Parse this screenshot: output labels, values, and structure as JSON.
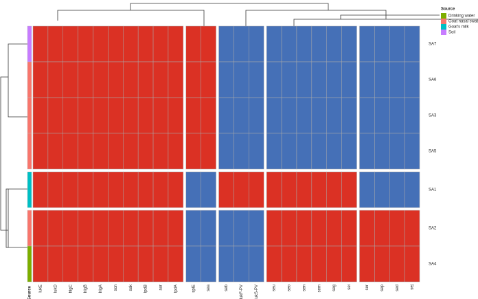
{
  "chart_data": {
    "type": "heatmap",
    "columns": [
      "lukE",
      "lukD",
      "hlgC",
      "hlgB",
      "hlgA",
      "scn",
      "sak",
      "lpdB",
      "aur",
      "lpdA",
      "splE",
      "sea",
      "seb",
      "lukF-PV",
      "lukS-PV",
      "seu",
      "seo",
      "sen",
      "sem",
      "seg",
      "sei",
      "ser",
      "sep",
      "sed",
      "sej"
    ],
    "rows": [
      "SA7",
      "SA6",
      "SA3",
      "SA5",
      "SA1",
      "SA2",
      "SA4"
    ],
    "values": [
      [
        1,
        1,
        1,
        1,
        1,
        1,
        1,
        1,
        1,
        1,
        1,
        1,
        0,
        0,
        0,
        0,
        0,
        0,
        0,
        0,
        0,
        0,
        0,
        0,
        0
      ],
      [
        1,
        1,
        1,
        1,
        1,
        1,
        1,
        1,
        1,
        1,
        1,
        1,
        0,
        0,
        0,
        0,
        0,
        0,
        0,
        0,
        0,
        0,
        0,
        0,
        0
      ],
      [
        1,
        1,
        1,
        1,
        1,
        1,
        1,
        1,
        1,
        1,
        1,
        1,
        0,
        0,
        0,
        0,
        0,
        0,
        0,
        0,
        0,
        0,
        0,
        0,
        0
      ],
      [
        1,
        1,
        1,
        1,
        1,
        1,
        1,
        1,
        1,
        1,
        1,
        1,
        0,
        0,
        0,
        0,
        0,
        0,
        0,
        0,
        0,
        0,
        0,
        0,
        0
      ],
      [
        1,
        1,
        1,
        1,
        1,
        1,
        1,
        1,
        1,
        1,
        0,
        0,
        1,
        1,
        1,
        1,
        1,
        1,
        1,
        1,
        1,
        0,
        0,
        0,
        0
      ],
      [
        1,
        1,
        1,
        1,
        1,
        1,
        1,
        1,
        1,
        1,
        0,
        0,
        0,
        0,
        0,
        1,
        1,
        1,
        1,
        1,
        1,
        1,
        1,
        1,
        1
      ],
      [
        1,
        1,
        1,
        1,
        1,
        1,
        1,
        1,
        1,
        1,
        0,
        0,
        0,
        0,
        0,
        1,
        1,
        1,
        1,
        1,
        1,
        1,
        1,
        1,
        1
      ]
    ],
    "color_scale": [
      "#4570b7",
      "#db3124"
    ],
    "column_splits": [
      10,
      12,
      15,
      21
    ],
    "row_splits": [
      4,
      5
    ],
    "annotation": {
      "title": "Source",
      "categories": [
        "Drinking water",
        "Goat nasal swab",
        "Goat's milk",
        "Soil"
      ],
      "colors": [
        "#7cae00",
        "#f8766d",
        "#00bfc4",
        "#c77cff"
      ],
      "values": [
        "Soil",
        "Goat nasal swab",
        "Goat nasal swab",
        "Goat nasal swab",
        "Goat's milk",
        "Goat nasal swab",
        "Drinking water"
      ]
    }
  }
}
